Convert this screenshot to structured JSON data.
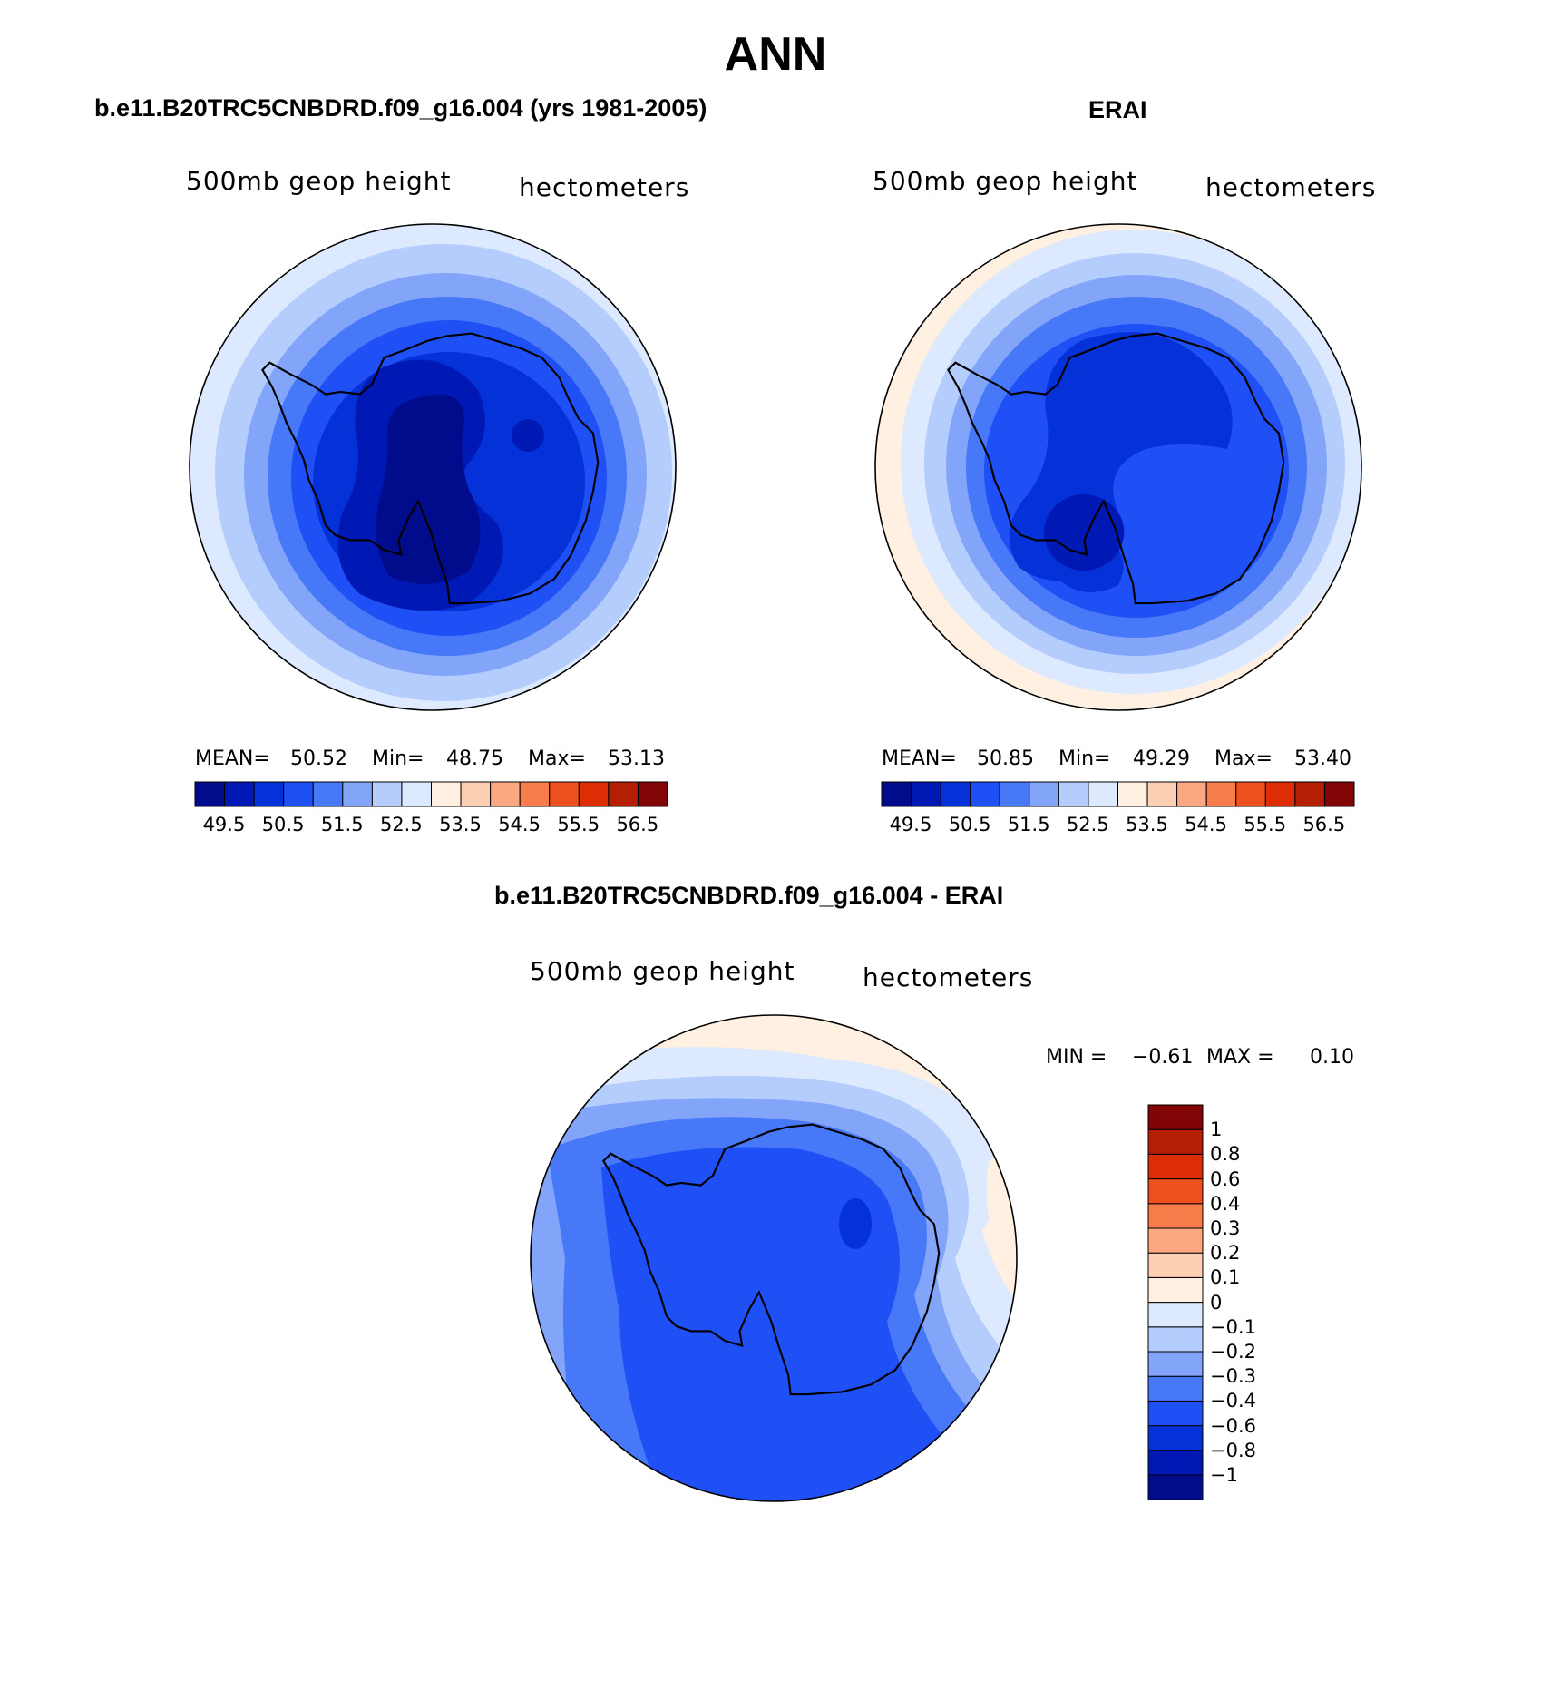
{
  "title": "ANN",
  "panels": {
    "model": {
      "title": "b.e11.B20TRC5CNBDRD.f09_g16.004 (yrs 1981-2005)",
      "variable": "500mb geop height",
      "units": "hectometers",
      "mean_label": "MEAN=",
      "mean": "50.52",
      "min_label": "Min=",
      "min": "48.75",
      "max_label": "Max=",
      "max": "53.13"
    },
    "obs": {
      "title": "ERAI",
      "variable": "500mb geop height",
      "units": "hectometers",
      "mean_label": "MEAN=",
      "mean": "50.85",
      "min_label": "Min=",
      "min": "49.29",
      "max_label": "Max=",
      "max": "53.40"
    },
    "diff": {
      "title": "b.e11.B20TRC5CNBDRD.f09_g16.004 - ERAI",
      "variable": "500mb geop height",
      "units": "hectometers",
      "min_label": "MIN =",
      "min": "−0.61",
      "max_label": "MAX =",
      "max": "0.10"
    }
  },
  "colorbar_main": {
    "colors": [
      "#000c8c",
      "#0019b4",
      "#0532d8",
      "#1e50f5",
      "#4678f7",
      "#82a5fa",
      "#b4cdfc",
      "#dce9fe",
      "#fff0e1",
      "#fdd0b4",
      "#fba882",
      "#f87d4b",
      "#f0501e",
      "#dc2d05",
      "#b41e05",
      "#820505"
    ],
    "tick_labels": [
      "49.5",
      "50.5",
      "51.5",
      "52.5",
      "53.5",
      "54.5",
      "55.5",
      "56.5"
    ]
  },
  "colorbar_diff": {
    "colors_bottom_to_top": [
      "#000c8c",
      "#0019b4",
      "#0532d8",
      "#1e50f5",
      "#4678f7",
      "#82a5fa",
      "#b4cdfc",
      "#dce9fe",
      "#fff0e1",
      "#fdd0b4",
      "#fba882",
      "#f87d4b",
      "#f0501e",
      "#dc2d05",
      "#b41e05",
      "#820505"
    ],
    "tick_labels_top_to_bottom": [
      "1",
      "0.8",
      "0.6",
      "0.4",
      "0.3",
      "0.2",
      "0.1",
      "0",
      "−0.1",
      "−0.2",
      "−0.3",
      "−0.4",
      "−0.6",
      "−0.8",
      "−1"
    ]
  }
}
